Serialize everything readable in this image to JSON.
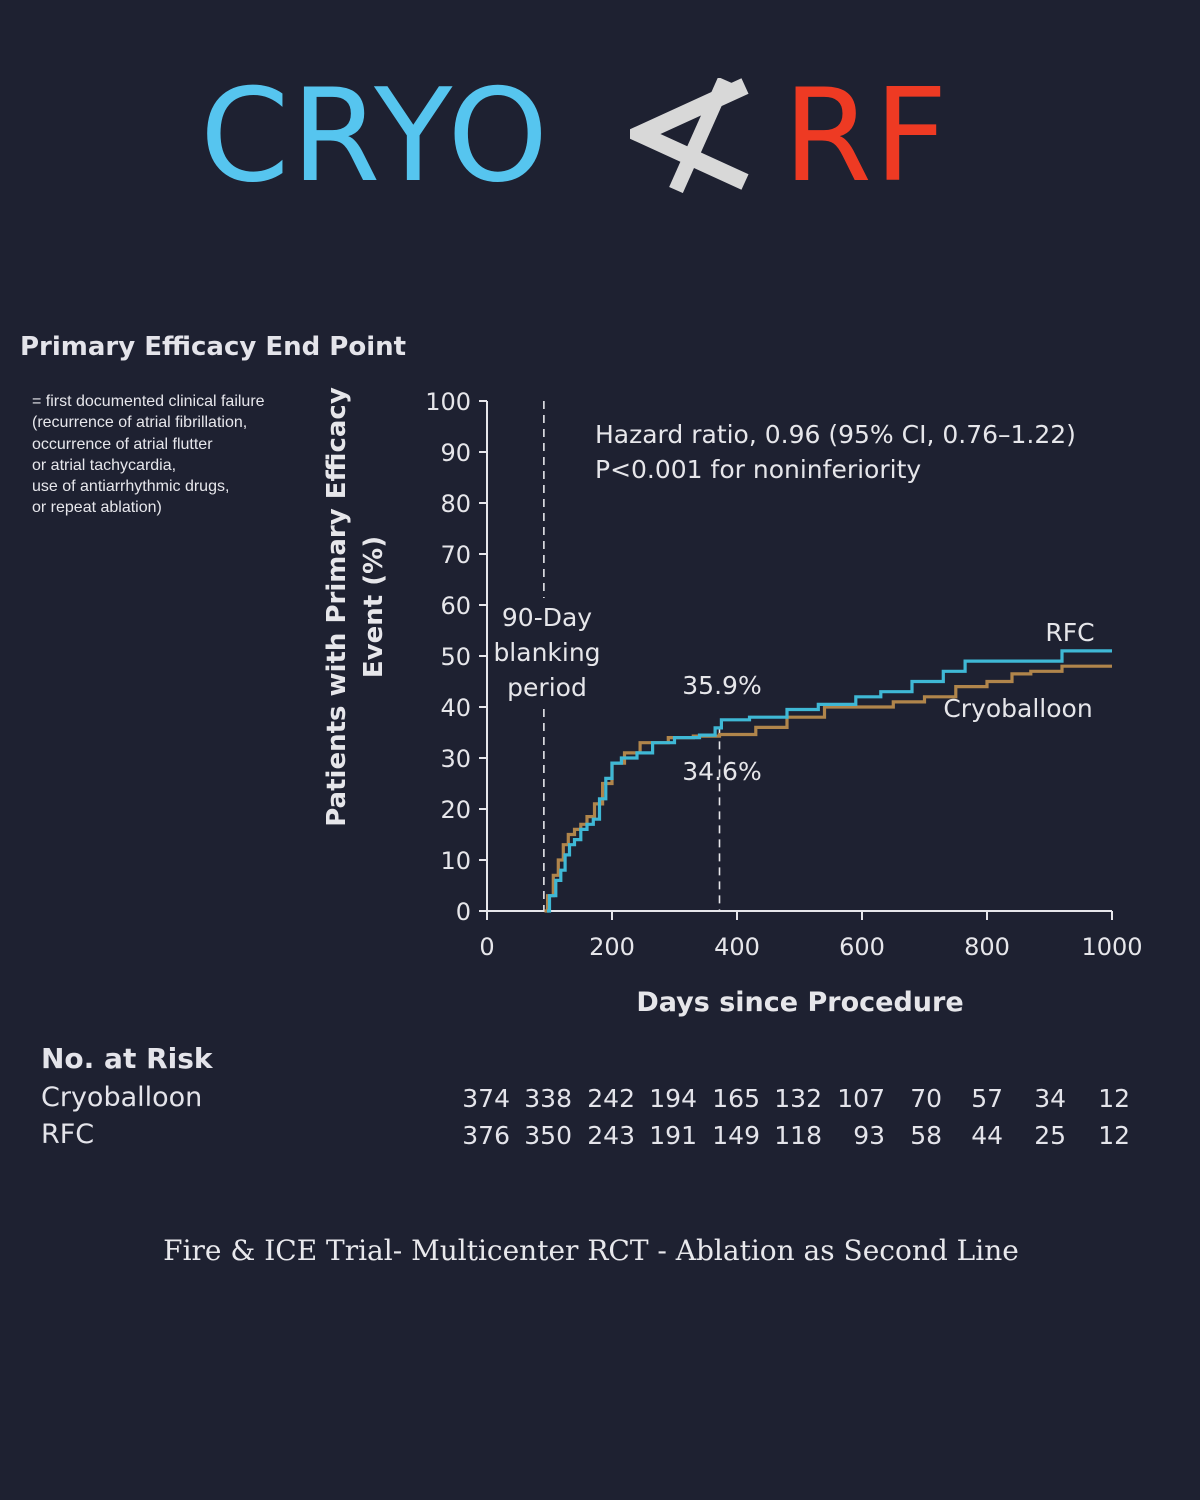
{
  "header": {
    "left_word": "CRYO",
    "right_word": "RF",
    "symbol_icon": "not-less-than-icon",
    "left_color": "#56c5ef",
    "right_color": "#ee3a23",
    "symbol_color": "#d8d8d8"
  },
  "section_title": "Primary Efficacy End Point",
  "definition_lines": [
    "= first documented clinical failure",
    "(recurrence of atrial fibrillation,",
    "occurrence of atrial flutter",
    "or atrial tachycardia,",
    "use of antiarrhythmic drugs,",
    "or repeat ablation)"
  ],
  "chart_data": {
    "type": "line",
    "step": true,
    "xlabel": "Days since Procedure",
    "ylabel": "Patients with Primary Efficacy Event (%)",
    "xlim": [
      0,
      1000
    ],
    "ylim": [
      0,
      100
    ],
    "xticks": [
      0,
      200,
      400,
      600,
      800,
      1000
    ],
    "yticks": [
      0,
      10,
      20,
      30,
      40,
      50,
      60,
      70,
      80,
      90,
      100
    ],
    "annotation_lines": [
      "Hazard ratio, 0.96 (95% CI, 0.76–1.22)",
      "P<0.001 for noninferiority"
    ],
    "blanking": {
      "x": 91,
      "label_lines": [
        "90-Day",
        "blanking",
        "period"
      ]
    },
    "one_year": {
      "x": 372,
      "upper_label": "35.9%",
      "lower_label": "34.6%"
    },
    "series": [
      {
        "name": "RFC",
        "color": "#3fb8d5",
        "points": [
          [
            96,
            0
          ],
          [
            100,
            3
          ],
          [
            110,
            6
          ],
          [
            118,
            8
          ],
          [
            125,
            11
          ],
          [
            132,
            13
          ],
          [
            140,
            14
          ],
          [
            150,
            16
          ],
          [
            160,
            17
          ],
          [
            170,
            18
          ],
          [
            180,
            22
          ],
          [
            190,
            26
          ],
          [
            200,
            29
          ],
          [
            215,
            30
          ],
          [
            240,
            31
          ],
          [
            265,
            33
          ],
          [
            300,
            34
          ],
          [
            340,
            34.5
          ],
          [
            365,
            35.9
          ],
          [
            375,
            37.5
          ],
          [
            420,
            38
          ],
          [
            480,
            39.5
          ],
          [
            530,
            40.5
          ],
          [
            590,
            42
          ],
          [
            630,
            43
          ],
          [
            680,
            45
          ],
          [
            730,
            47
          ],
          [
            765,
            49
          ],
          [
            850,
            49
          ],
          [
            918,
            49
          ],
          [
            920,
            51
          ],
          [
            1000,
            51
          ]
        ]
      },
      {
        "name": "Cryoballoon",
        "color": "#b0854b",
        "points": [
          [
            92,
            0
          ],
          [
            97,
            3
          ],
          [
            106,
            7
          ],
          [
            114,
            10
          ],
          [
            122,
            13
          ],
          [
            130,
            15
          ],
          [
            140,
            16
          ],
          [
            150,
            17
          ],
          [
            160,
            18.5
          ],
          [
            172,
            21
          ],
          [
            185,
            25
          ],
          [
            200,
            29
          ],
          [
            220,
            31
          ],
          [
            245,
            33
          ],
          [
            290,
            34
          ],
          [
            330,
            34.3
          ],
          [
            372,
            34.6
          ],
          [
            430,
            36
          ],
          [
            480,
            38
          ],
          [
            540,
            40
          ],
          [
            600,
            40
          ],
          [
            650,
            41
          ],
          [
            700,
            42
          ],
          [
            750,
            44
          ],
          [
            800,
            45
          ],
          [
            840,
            46.5
          ],
          [
            870,
            47
          ],
          [
            920,
            48
          ],
          [
            1000,
            48
          ]
        ]
      }
    ]
  },
  "risk_table": {
    "title": "No. at Risk",
    "rows": [
      {
        "label": "Cryoballoon",
        "values": [
          "374",
          "338",
          "242",
          "194",
          "165",
          "132",
          "107",
          "70",
          "57",
          "34",
          "12"
        ]
      },
      {
        "label": "RFC",
        "values": [
          "376",
          "350",
          "243",
          "191",
          "149",
          "118",
          "93",
          "58",
          "44",
          "25",
          "12"
        ]
      }
    ]
  },
  "footer_caption": "Fire & ICE Trial- Multicenter RCT - Ablation as Second Line"
}
